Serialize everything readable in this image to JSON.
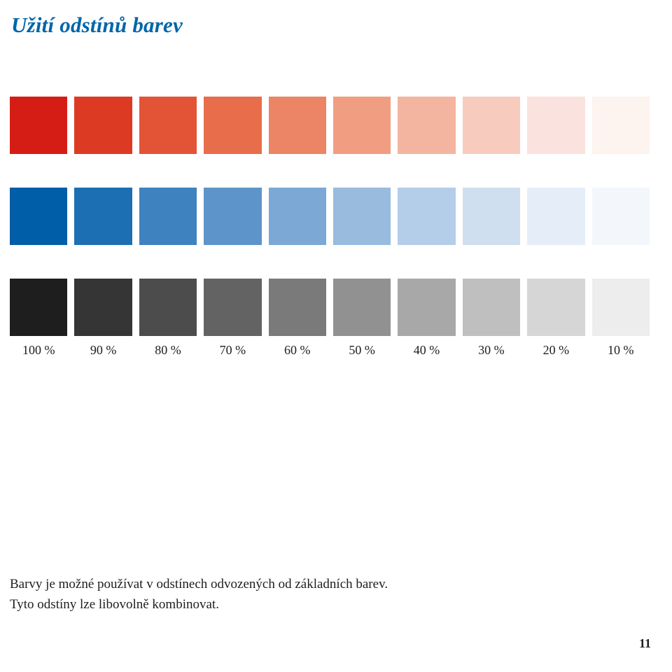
{
  "title": "Užití odstínů barev",
  "percent_labels": [
    "100 %",
    "90 %",
    "80 %",
    "70 %",
    "60 %",
    "50 %",
    "40 %",
    "30 %",
    "20 %",
    "10 %"
  ],
  "rows": {
    "red": [
      "#d51d15",
      "#dd3a24",
      "#e35436",
      "#e86d4b",
      "#ec8565",
      "#f09d82",
      "#f4b5a0",
      "#f7ccbf",
      "#fae3de",
      "#fdf3ef"
    ],
    "blue": [
      "#005ea8",
      "#1d6fb4",
      "#3e82bf",
      "#5d95ca",
      "#7ba8d4",
      "#98bbde",
      "#b4cde8",
      "#cfdff0",
      "#e5eef8",
      "#f3f7fc"
    ],
    "gray": [
      "#1e1e1e",
      "#353535",
      "#4c4c4c",
      "#636363",
      "#7a7a7a",
      "#919191",
      "#a8a8a8",
      "#bfbfbf",
      "#d6d6d6",
      "#ededed"
    ]
  },
  "body_text_line1": "Barvy je možné používat v odstínech odvozených od základních barev.",
  "body_text_line2": "Tyto odstíny lze libovolně kombinovat.",
  "page_number": "11"
}
